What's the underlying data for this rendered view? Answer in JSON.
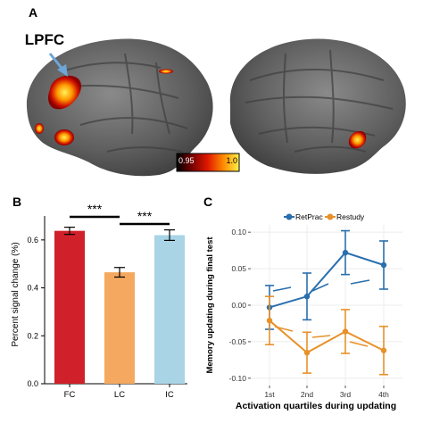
{
  "panels": {
    "a": {
      "letter": "A",
      "roi_label": "LPFC",
      "colorbar_min": "0.95",
      "colorbar_max": "1.0"
    },
    "b": {
      "letter": "B"
    },
    "c": {
      "letter": "C"
    }
  },
  "colors": {
    "fc": "#d0202a",
    "lc": "#f5a860",
    "ic": "#a8d4e6",
    "retprac": "#2a6fad",
    "restudy": "#e8912a",
    "roi_arrow": "#6ea6d8"
  },
  "chart_data": [
    {
      "type": "bar",
      "categories": [
        "FC",
        "LC",
        "IC"
      ],
      "values": [
        0.638,
        0.465,
        0.62
      ],
      "errors": [
        0.015,
        0.02,
        0.022
      ],
      "ylabel": "Percent signal change (%)",
      "ylim": [
        0,
        0.7
      ],
      "yticks": [
        "0.0",
        "0.2",
        "0.4",
        "0.6"
      ],
      "significance": [
        "***",
        "***"
      ]
    },
    {
      "type": "line",
      "categories": [
        "1st",
        "2nd",
        "3rd",
        "4th"
      ],
      "xlabel": "Activation quartiles during updating",
      "ylabel": "Memory updating during final test",
      "ylim": [
        -0.11,
        0.11
      ],
      "yticks": [
        "0.10",
        "0.05",
        "0.00",
        "-0.05",
        "-0.10"
      ],
      "legend_position": "top",
      "series": [
        {
          "name": "RetPrac",
          "values": [
            -0.003,
            0.012,
            0.072,
            0.055
          ],
          "errors": [
            0.03,
            0.032,
            0.03,
            0.033
          ]
        },
        {
          "name": "Restudy",
          "values": [
            -0.021,
            -0.065,
            -0.036,
            -0.062
          ],
          "errors": [
            0.033,
            0.028,
            0.03,
            0.033
          ]
        }
      ]
    }
  ]
}
